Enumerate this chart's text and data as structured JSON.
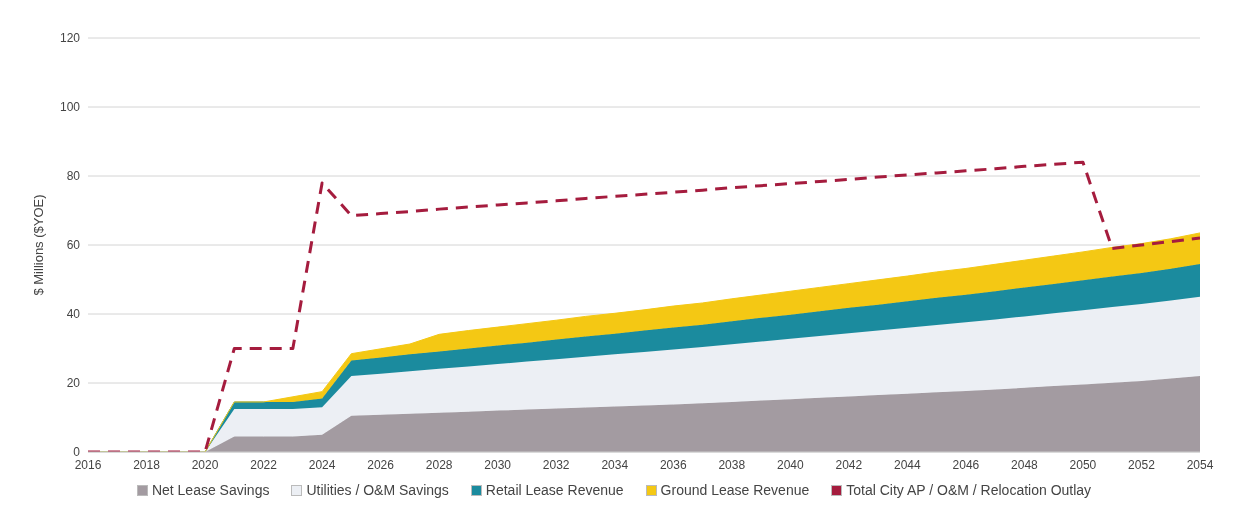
{
  "chart_data": {
    "type": "area",
    "stacked": true,
    "ylabel": "$ Millions ($YOE)",
    "x": [
      2016,
      2017,
      2018,
      2019,
      2020,
      2021,
      2022,
      2023,
      2024,
      2025,
      2026,
      2027,
      2028,
      2029,
      2030,
      2031,
      2032,
      2033,
      2034,
      2035,
      2036,
      2037,
      2038,
      2039,
      2040,
      2041,
      2042,
      2043,
      2044,
      2045,
      2046,
      2047,
      2048,
      2049,
      2050,
      2051,
      2052,
      2053,
      2054
    ],
    "xlim": [
      2016,
      2054
    ],
    "xticks": [
      2016,
      2018,
      2020,
      2022,
      2024,
      2026,
      2028,
      2030,
      2032,
      2034,
      2036,
      2038,
      2040,
      2042,
      2044,
      2046,
      2048,
      2050,
      2052,
      2054
    ],
    "ylim": [
      0,
      120
    ],
    "yticks": [
      0,
      20,
      40,
      60,
      80,
      100,
      120
    ],
    "grid": "y",
    "legend": "bottom",
    "series": [
      {
        "name": "Net Lease Savings",
        "color": "#a39ba1",
        "values": [
          0,
          0,
          0,
          0,
          0,
          4.5,
          4.5,
          4.5,
          5,
          10.5,
          10.8,
          11.1,
          11.4,
          11.7,
          12,
          12.3,
          12.6,
          12.9,
          13.2,
          13.5,
          13.8,
          14.1,
          14.5,
          14.9,
          15.3,
          15.7,
          16.1,
          16.5,
          16.9,
          17.3,
          17.7,
          18.1,
          18.6,
          19.1,
          19.6,
          20.1,
          20.6,
          21.3,
          22
        ]
      },
      {
        "name": "Utilities / O&M Savings",
        "color": "#eceff4",
        "values": [
          0,
          0,
          0,
          0,
          0,
          8,
          8,
          8,
          8,
          11.5,
          11.9,
          12.3,
          12.7,
          13.1,
          13.5,
          13.9,
          14.3,
          14.7,
          15.1,
          15.5,
          15.9,
          16.3,
          16.7,
          17.1,
          17.5,
          17.9,
          18.3,
          18.7,
          19.1,
          19.5,
          19.9,
          20.3,
          20.7,
          21.1,
          21.5,
          21.9,
          22.3,
          22.6,
          23
        ]
      },
      {
        "name": "Retail Lease Revenue",
        "color": "#1b8b9e",
        "values": [
          0,
          0,
          0,
          0,
          0,
          2,
          2,
          2,
          2.5,
          4.5,
          4.7,
          4.9,
          5,
          5.2,
          5.4,
          5.5,
          5.7,
          5.9,
          6,
          6.2,
          6.4,
          6.5,
          6.7,
          6.9,
          7,
          7.2,
          7.4,
          7.5,
          7.7,
          7.9,
          8,
          8.2,
          8.4,
          8.5,
          8.7,
          8.9,
          9,
          9.2,
          9.5
        ]
      },
      {
        "name": "Ground Lease Revenue",
        "color": "#f4c814",
        "values": [
          0,
          0,
          0,
          0,
          0,
          0,
          0,
          1.5,
          2,
          2,
          2.5,
          3,
          5,
          5.2,
          5.3,
          5.5,
          5.6,
          5.8,
          5.9,
          6,
          6.2,
          6.3,
          6.5,
          6.6,
          6.8,
          6.9,
          7,
          7.2,
          7.3,
          7.5,
          7.6,
          7.8,
          7.9,
          8.1,
          8.2,
          8.4,
          8.5,
          8.7,
          9
        ]
      },
      {
        "name": "Total City AP / O&M / Relocation Outlay",
        "type": "line",
        "line_style": "dashed",
        "color": "#a51c3e",
        "values": [
          0,
          0,
          0,
          0,
          0,
          30,
          30,
          30,
          78,
          68.5,
          69.1,
          69.7,
          70.4,
          71,
          71.6,
          72.2,
          72.8,
          73.5,
          74.1,
          74.7,
          75.3,
          75.9,
          76.6,
          77.2,
          77.8,
          78.4,
          79,
          79.7,
          80.3,
          80.9,
          81.5,
          82.1,
          82.8,
          83.4,
          84,
          59,
          60,
          61,
          62
        ]
      }
    ]
  }
}
